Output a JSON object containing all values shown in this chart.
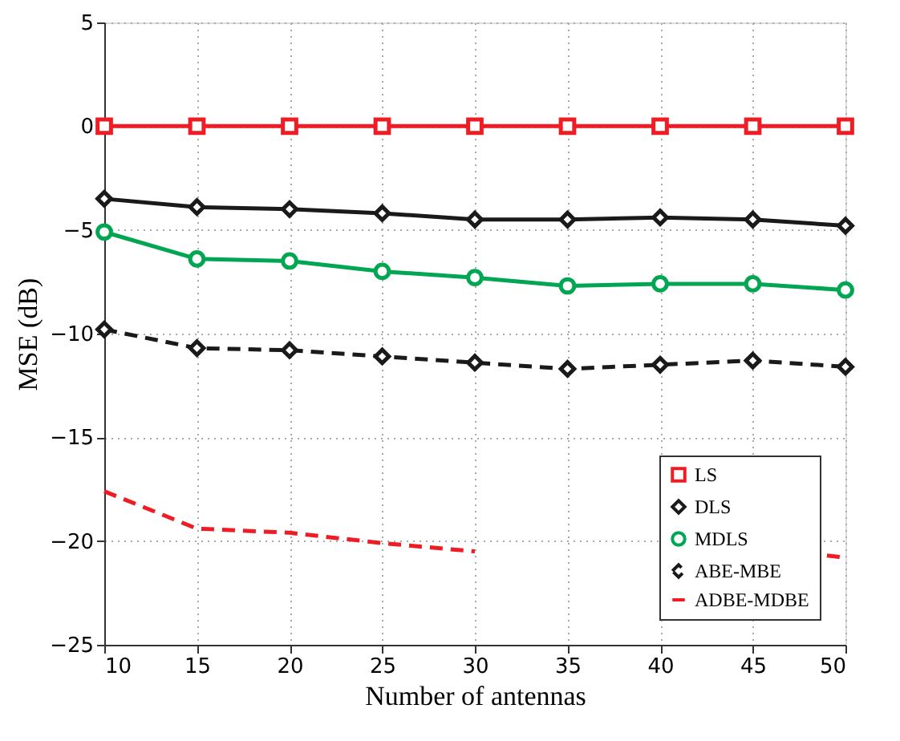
{
  "chart_data": {
    "type": "line",
    "xlabel": "Number of antennas",
    "ylabel": "MSE (dB)",
    "x": [
      10,
      15,
      20,
      25,
      30,
      35,
      40,
      45,
      50
    ],
    "series": [
      {
        "name": "LS",
        "color": "#ee1c24",
        "marker": "square",
        "line_style": "solid",
        "values": [
          0,
          0,
          0,
          0,
          0,
          0,
          0,
          0,
          0
        ]
      },
      {
        "name": "DLS",
        "color": "#1a1a1a",
        "marker": "diamond",
        "line_style": "solid",
        "values": [
          -3.5,
          -3.9,
          -4.0,
          -4.2,
          -4.5,
          -4.5,
          -4.4,
          -4.5,
          -4.8
        ]
      },
      {
        "name": "MDLS",
        "color": "#00a651",
        "marker": "circle",
        "line_style": "solid",
        "values": [
          -5.1,
          -6.4,
          -6.5,
          -7.0,
          -7.3,
          -7.7,
          -7.6,
          -7.6,
          -7.9
        ]
      },
      {
        "name": "ABE-MBE",
        "color": "#1a1a1a",
        "marker": "diamond",
        "line_style": "dashed",
        "values": [
          -9.8,
          -10.7,
          -10.8,
          -11.1,
          -11.4,
          -11.7,
          -11.5,
          -11.3,
          -11.6
        ]
      },
      {
        "name": "ADBE-MDBE",
        "color": "#ee1c24",
        "marker": "none",
        "line_style": "dashed",
        "x": [
          10,
          15,
          20,
          25,
          30,
          35,
          40,
          45,
          49,
          50
        ],
        "values": [
          -17.6,
          -19.4,
          -19.6,
          -20.1,
          -20.5,
          null,
          null,
          null,
          -20.7,
          -20.8
        ]
      }
    ],
    "xlim": [
      10,
      50
    ],
    "xticks": [
      10,
      15,
      20,
      25,
      30,
      35,
      40,
      45,
      50
    ],
    "ylim": [
      -25,
      5
    ],
    "yticks": [
      -25,
      -20,
      -15,
      -10,
      -5,
      0,
      5
    ],
    "grid": true,
    "legend": "bottom right"
  }
}
